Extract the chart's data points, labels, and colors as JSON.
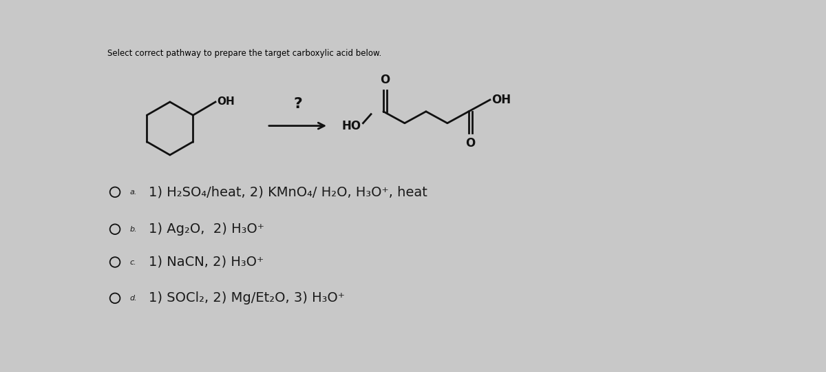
{
  "background_color": "#c8c8c8",
  "title_text": "Select correct pathway to prepare the target carboxylic acid below.",
  "title_fontsize": 8.5,
  "title_color": "#000000",
  "options": [
    {
      "label": "a.",
      "text": "1) H₂SO₄/heat, 2) KMnO₄/ H₂O, H₃O⁺, heat"
    },
    {
      "label": "b.",
      "text": "1) Ag₂O,  2) H₃O⁺"
    },
    {
      "label": "c.",
      "text": "1) NaCN, 2) H₃O⁺"
    },
    {
      "label": "d.",
      "text": "1) SOCl₂, 2) Mg/Et₂O, 3) H₃O⁺"
    }
  ],
  "text_color": "#1a1a1a",
  "option_fontsize": 14,
  "label_fontsize": 8
}
